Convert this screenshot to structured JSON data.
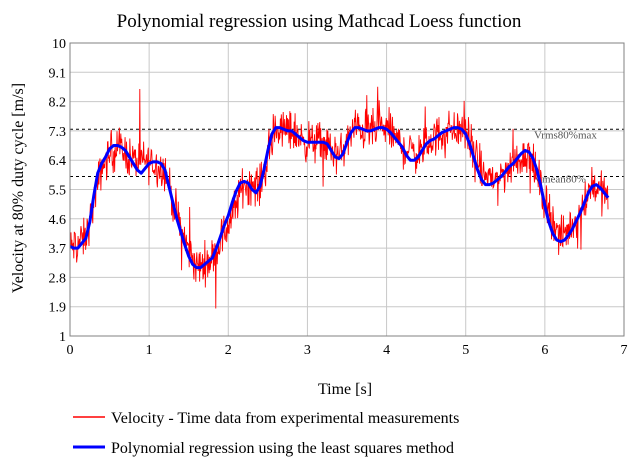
{
  "chart_data": {
    "type": "line",
    "title": "Polynomial regression using Mathcad Loess function",
    "xlabel": "Time [s]",
    "ylabel": "Velocity at 80% duty cycle [m/s]",
    "xlim": [
      0,
      7
    ],
    "ylim": [
      1,
      10
    ],
    "x_ticks": [
      "0",
      "1",
      "2",
      "3",
      "4",
      "5",
      "6",
      "7"
    ],
    "y_ticks": [
      "1",
      "1.9",
      "2.8",
      "3.7",
      "4.6",
      "5.5",
      "6.4",
      "7.3",
      "8.2",
      "9.1",
      "10"
    ],
    "grid": true,
    "reference_lines": [
      {
        "name": "rms80%max",
        "label": "Vrms80%max",
        "y": 7.35
      },
      {
        "name": "mean80",
        "label": "Vmean80%",
        "y": 5.9
      }
    ],
    "series": [
      {
        "name": "Velocity - Time data from experimental measurements",
        "color": "#ff0000",
        "noise_amplitude": 0.9,
        "points": [
          [
            0.0,
            3.7
          ],
          [
            0.2,
            4.0
          ],
          [
            0.4,
            6.2
          ],
          [
            0.6,
            6.85
          ],
          [
            0.8,
            6.4
          ],
          [
            1.0,
            6.35
          ],
          [
            1.2,
            6.1
          ],
          [
            1.4,
            4.2
          ],
          [
            1.6,
            3.1
          ],
          [
            1.8,
            3.4
          ],
          [
            2.0,
            4.4
          ],
          [
            2.2,
            5.7
          ],
          [
            2.4,
            5.6
          ],
          [
            2.6,
            7.35
          ],
          [
            2.8,
            7.3
          ],
          [
            3.0,
            6.95
          ],
          [
            3.2,
            6.95
          ],
          [
            3.4,
            6.5
          ],
          [
            3.6,
            7.4
          ],
          [
            3.8,
            7.3
          ],
          [
            4.0,
            7.4
          ],
          [
            4.2,
            6.8
          ],
          [
            4.4,
            6.6
          ],
          [
            4.6,
            7.1
          ],
          [
            4.8,
            7.35
          ],
          [
            5.0,
            7.3
          ],
          [
            5.2,
            6.0
          ],
          [
            5.4,
            5.8
          ],
          [
            5.6,
            6.3
          ],
          [
            5.8,
            6.65
          ],
          [
            6.0,
            5.2
          ],
          [
            6.2,
            3.95
          ],
          [
            6.4,
            4.6
          ],
          [
            6.6,
            5.7
          ],
          [
            6.8,
            5.25
          ]
        ]
      },
      {
        "name": "Polynomial regression using the least squares method",
        "color": "#0000ff",
        "points": [
          [
            0.0,
            3.75
          ],
          [
            0.05,
            3.7
          ],
          [
            0.1,
            3.7
          ],
          [
            0.15,
            3.85
          ],
          [
            0.2,
            4.0
          ],
          [
            0.25,
            4.5
          ],
          [
            0.3,
            5.3
          ],
          [
            0.35,
            6.0
          ],
          [
            0.4,
            6.3
          ],
          [
            0.45,
            6.5
          ],
          [
            0.5,
            6.75
          ],
          [
            0.55,
            6.85
          ],
          [
            0.6,
            6.85
          ],
          [
            0.65,
            6.8
          ],
          [
            0.7,
            6.7
          ],
          [
            0.75,
            6.5
          ],
          [
            0.8,
            6.3
          ],
          [
            0.85,
            6.1
          ],
          [
            0.9,
            6.0
          ],
          [
            0.95,
            6.15
          ],
          [
            1.0,
            6.3
          ],
          [
            1.05,
            6.35
          ],
          [
            1.1,
            6.35
          ],
          [
            1.15,
            6.3
          ],
          [
            1.2,
            6.1
          ],
          [
            1.25,
            5.6
          ],
          [
            1.3,
            5.1
          ],
          [
            1.35,
            4.6
          ],
          [
            1.4,
            4.2
          ],
          [
            1.45,
            3.8
          ],
          [
            1.5,
            3.45
          ],
          [
            1.55,
            3.2
          ],
          [
            1.6,
            3.1
          ],
          [
            1.65,
            3.1
          ],
          [
            1.7,
            3.2
          ],
          [
            1.75,
            3.3
          ],
          [
            1.8,
            3.4
          ],
          [
            1.85,
            3.7
          ],
          [
            1.9,
            4.05
          ],
          [
            1.95,
            4.4
          ],
          [
            2.0,
            4.7
          ],
          [
            2.05,
            5.1
          ],
          [
            2.1,
            5.45
          ],
          [
            2.15,
            5.7
          ],
          [
            2.2,
            5.75
          ],
          [
            2.25,
            5.7
          ],
          [
            2.3,
            5.5
          ],
          [
            2.35,
            5.4
          ],
          [
            2.4,
            5.6
          ],
          [
            2.45,
            6.1
          ],
          [
            2.5,
            6.7
          ],
          [
            2.55,
            7.2
          ],
          [
            2.6,
            7.4
          ],
          [
            2.65,
            7.4
          ],
          [
            2.7,
            7.35
          ],
          [
            2.75,
            7.3
          ],
          [
            2.8,
            7.3
          ],
          [
            2.85,
            7.2
          ],
          [
            2.9,
            7.1
          ],
          [
            2.95,
            7.0
          ],
          [
            3.0,
            6.95
          ],
          [
            3.05,
            6.95
          ],
          [
            3.1,
            6.95
          ],
          [
            3.15,
            6.95
          ],
          [
            3.2,
            6.95
          ],
          [
            3.25,
            6.9
          ],
          [
            3.3,
            6.7
          ],
          [
            3.35,
            6.5
          ],
          [
            3.4,
            6.45
          ],
          [
            3.45,
            6.6
          ],
          [
            3.5,
            6.95
          ],
          [
            3.55,
            7.25
          ],
          [
            3.6,
            7.4
          ],
          [
            3.65,
            7.4
          ],
          [
            3.7,
            7.35
          ],
          [
            3.75,
            7.3
          ],
          [
            3.8,
            7.3
          ],
          [
            3.85,
            7.35
          ],
          [
            3.9,
            7.4
          ],
          [
            3.95,
            7.4
          ],
          [
            4.0,
            7.35
          ],
          [
            4.05,
            7.25
          ],
          [
            4.1,
            7.1
          ],
          [
            4.15,
            6.95
          ],
          [
            4.2,
            6.8
          ],
          [
            4.25,
            6.55
          ],
          [
            4.3,
            6.4
          ],
          [
            4.35,
            6.4
          ],
          [
            4.4,
            6.5
          ],
          [
            4.45,
            6.7
          ],
          [
            4.5,
            6.9
          ],
          [
            4.55,
            7.0
          ],
          [
            4.6,
            7.05
          ],
          [
            4.65,
            7.15
          ],
          [
            4.7,
            7.25
          ],
          [
            4.75,
            7.3
          ],
          [
            4.8,
            7.35
          ],
          [
            4.85,
            7.4
          ],
          [
            4.9,
            7.4
          ],
          [
            4.95,
            7.35
          ],
          [
            5.0,
            7.2
          ],
          [
            5.05,
            6.9
          ],
          [
            5.1,
            6.5
          ],
          [
            5.15,
            6.1
          ],
          [
            5.2,
            5.8
          ],
          [
            5.25,
            5.65
          ],
          [
            5.3,
            5.65
          ],
          [
            5.35,
            5.7
          ],
          [
            5.4,
            5.8
          ],
          [
            5.45,
            5.9
          ],
          [
            5.5,
            6.05
          ],
          [
            5.55,
            6.2
          ],
          [
            5.6,
            6.3
          ],
          [
            5.65,
            6.45
          ],
          [
            5.7,
            6.6
          ],
          [
            5.75,
            6.7
          ],
          [
            5.8,
            6.65
          ],
          [
            5.85,
            6.45
          ],
          [
            5.9,
            6.1
          ],
          [
            5.95,
            5.6
          ],
          [
            6.0,
            5.0
          ],
          [
            6.05,
            4.5
          ],
          [
            6.1,
            4.15
          ],
          [
            6.15,
            3.95
          ],
          [
            6.2,
            3.9
          ],
          [
            6.25,
            3.95
          ],
          [
            6.3,
            4.1
          ],
          [
            6.35,
            4.3
          ],
          [
            6.4,
            4.55
          ],
          [
            6.45,
            4.8
          ],
          [
            6.5,
            5.1
          ],
          [
            6.55,
            5.4
          ],
          [
            6.6,
            5.6
          ],
          [
            6.65,
            5.65
          ],
          [
            6.7,
            5.55
          ],
          [
            6.75,
            5.4
          ],
          [
            6.8,
            5.25
          ]
        ]
      }
    ],
    "legend": [
      {
        "label": "Velocity - Time data from experimental measurements",
        "color": "#ff0000"
      },
      {
        "label": "Polynomial regression using the least squares method",
        "color": "#0000ff"
      }
    ],
    "legend_position": "bottom"
  }
}
